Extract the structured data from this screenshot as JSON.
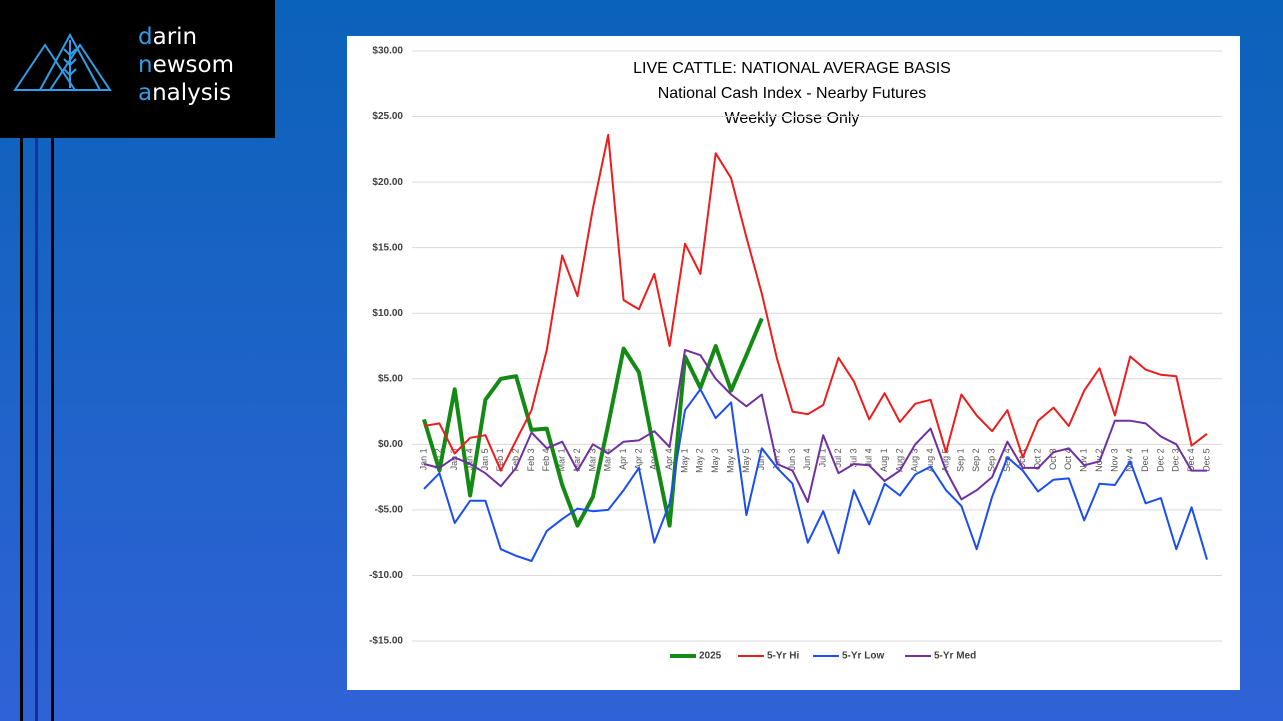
{
  "logo": [
    "darin",
    "newsom",
    "analysis"
  ],
  "chart_data": {
    "type": "line",
    "title": "LIVE CATTLE: NATIONAL AVERAGE BASIS",
    "subtitle": [
      "National Cash Index - Nearby Futures",
      "Weekly Close Only"
    ],
    "categories": [
      "Jan 1",
      "Jan 2",
      "Jan 3",
      "Jan 4",
      "Jan 5",
      "Feb 1",
      "Feb 2",
      "Feb 3",
      "Feb 4",
      "Mar 1",
      "Mar 2",
      "Mar 3",
      "Mar 4",
      "Apr 1",
      "Apr 2",
      "Apr 3",
      "Apr 4",
      "May 1",
      "May 2",
      "May 3",
      "May 4",
      "May 5",
      "Jun 1",
      "Jun 2",
      "Jun 3",
      "Jun 4",
      "Jul 1",
      "Jul 2",
      "Jul 3",
      "Jul 4",
      "Aug 1",
      "Aug 2",
      "Aug 3",
      "Aug 4",
      "Aug 5",
      "Sep 1",
      "Sep 2",
      "Sep 3",
      "Sep 4",
      "Oct 1",
      "Oct 2",
      "Oct 3",
      "Oct 4",
      "Nov 1",
      "Nov 2",
      "Nov 3",
      "Nov 4",
      "Dec 1",
      "Dec 2",
      "Dec 3",
      "Dec 4",
      "Dec 5"
    ],
    "series": [
      {
        "name": "2025",
        "color": "#138a13",
        "width": 4,
        "values": [
          1.9,
          -2.0,
          4.2,
          -3.9,
          3.4,
          5.0,
          5.2,
          1.1,
          1.2,
          -3.1,
          -6.2,
          -4.0,
          1.5,
          7.3,
          5.5,
          -0.5,
          -6.2,
          6.7,
          4.3,
          7.5,
          4.1,
          6.8,
          9.6,
          null,
          null,
          null,
          null,
          null,
          null,
          null,
          null,
          null,
          null,
          null,
          null,
          null,
          null,
          null,
          null,
          null,
          null,
          null,
          null,
          null,
          null,
          null,
          null,
          null,
          null,
          null,
          null,
          null
        ]
      },
      {
        "name": "5-Yr Hi",
        "color": "#ee1c1c",
        "width": 2,
        "values": [
          1.4,
          1.6,
          -0.7,
          0.5,
          0.7,
          -2.0,
          0.3,
          2.6,
          7.2,
          14.4,
          11.3,
          18.0,
          23.6,
          11.0,
          10.3,
          13.0,
          7.5,
          15.3,
          13.0,
          22.2,
          20.3,
          15.8,
          11.5,
          6.5,
          2.5,
          2.3,
          3.0,
          6.6,
          4.8,
          1.9,
          3.9,
          1.7,
          3.1,
          3.4,
          -0.6,
          3.8,
          2.2,
          1.0,
          2.6,
          -1.0,
          1.8,
          2.8,
          1.4,
          4.1,
          5.8,
          2.2,
          6.7,
          5.7,
          5.3,
          5.2,
          -0.1,
          0.8
        ]
      },
      {
        "name": "5-Yr Low",
        "color": "#1a4ef0",
        "width": 2,
        "values": [
          -3.4,
          -2.2,
          -6.0,
          -4.3,
          -4.3,
          -8.0,
          -8.5,
          -8.9,
          -6.6,
          -5.7,
          -4.9,
          -5.1,
          -5.0,
          -3.5,
          -1.8,
          -7.5,
          -4.5,
          2.6,
          4.2,
          2.0,
          3.2,
          -5.4,
          -0.3,
          -1.8,
          -3.0,
          -7.5,
          -5.1,
          -8.3,
          -3.5,
          -6.1,
          -3.0,
          -3.9,
          -2.3,
          -1.7,
          -3.5,
          -4.7,
          -8.0,
          -4.0,
          -1.0,
          -2.0,
          -3.6,
          -2.7,
          -2.6,
          -5.8,
          -3.0,
          -3.1,
          -1.3,
          -4.5,
          -4.1,
          -8.0,
          -4.8,
          -8.8
        ]
      },
      {
        "name": "5-Yr Med",
        "color": "#7030a0",
        "width": 2,
        "values": [
          -1.5,
          -1.8,
          -1.0,
          -1.5,
          -2.2,
          -3.2,
          -1.8,
          0.9,
          -0.3,
          0.2,
          -2.0,
          0.0,
          -0.7,
          0.2,
          0.3,
          1.0,
          -0.2,
          7.2,
          6.8,
          5.0,
          3.8,
          2.9,
          3.8,
          -1.5,
          -2.0,
          -4.4,
          0.7,
          -2.2,
          -1.5,
          -1.6,
          -2.8,
          -2.0,
          0.0,
          1.2,
          -2.0,
          -4.2,
          -3.5,
          -2.5,
          0.2,
          -1.8,
          -1.8,
          -0.6,
          -0.3,
          -1.6,
          -1.3,
          1.8,
          1.8,
          1.6,
          0.6,
          0.0,
          -2.0,
          -2.0
        ]
      }
    ],
    "ylim": [
      -15,
      30
    ],
    "yticks": [
      {
        "value": -15,
        "label": "-$15.00"
      },
      {
        "value": -10,
        "label": "-$10.00"
      },
      {
        "value": -5,
        "label": "-$5.00"
      },
      {
        "value": 0,
        "label": "$0.00"
      },
      {
        "value": 5,
        "label": "$5.00"
      },
      {
        "value": 10,
        "label": "$10.00"
      },
      {
        "value": 15,
        "label": "$15.00"
      },
      {
        "value": 20,
        "label": "$20.00"
      },
      {
        "value": 25,
        "label": "$25.00"
      },
      {
        "value": 30,
        "label": "$30.00"
      }
    ],
    "grid": true,
    "legend": "bottom"
  }
}
